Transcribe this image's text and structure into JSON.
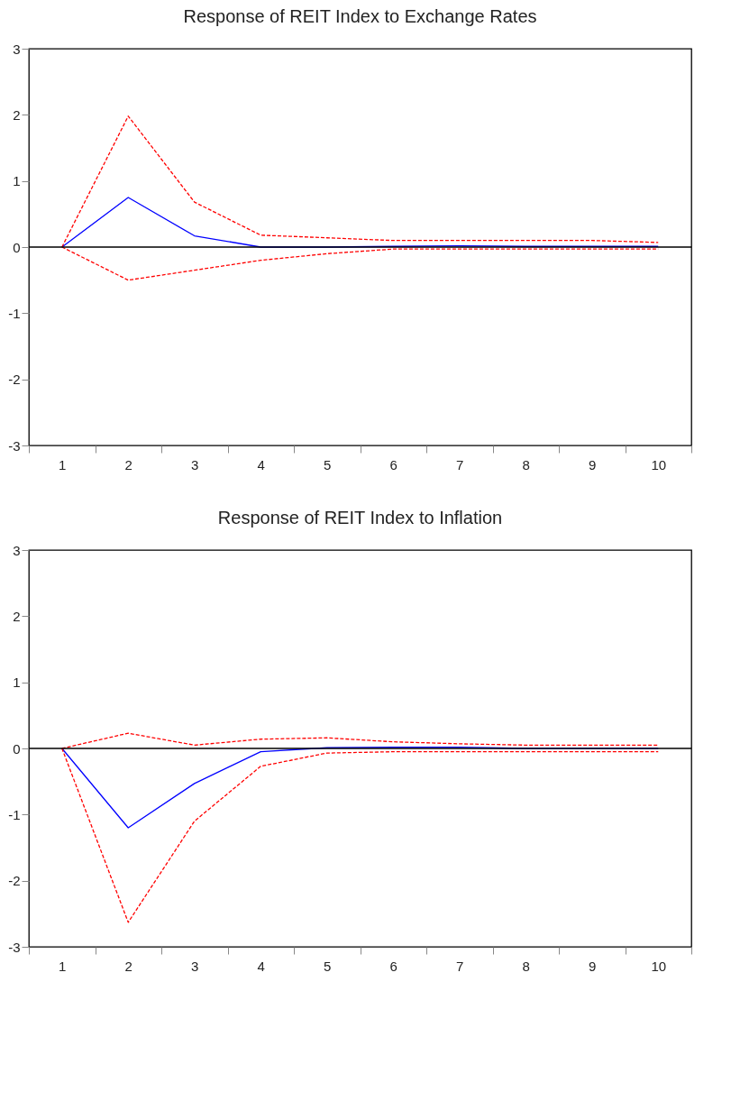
{
  "chart_data": [
    {
      "type": "line",
      "title": "Response of REIT Index to Exchange Rates",
      "categories": [
        "1",
        "2",
        "3",
        "4",
        "5",
        "6",
        "7",
        "8",
        "9",
        "10"
      ],
      "ylim": [
        -3,
        3
      ],
      "yticks": [
        -3,
        -2,
        -1,
        0,
        1,
        2,
        3
      ],
      "grid": false,
      "ref_lines": [
        {
          "axis": "y",
          "value": 0,
          "color": "#000000"
        }
      ],
      "series": [
        {
          "color": "#0000ff",
          "line_style": "solid",
          "values": [
            0,
            0.75,
            0.17,
            0.0,
            0.0,
            0.01,
            0.02,
            0.01,
            0.01,
            0.01
          ]
        },
        {
          "color": "#ff0000",
          "line_style": "dashed",
          "values": [
            0,
            1.98,
            0.68,
            0.18,
            0.14,
            0.1,
            0.1,
            0.1,
            0.1,
            0.07
          ]
        },
        {
          "color": "#ff0000",
          "line_style": "dashed",
          "values": [
            0,
            -0.5,
            -0.35,
            -0.2,
            -0.1,
            -0.03,
            -0.03,
            -0.03,
            -0.03,
            -0.03
          ]
        }
      ]
    },
    {
      "type": "line",
      "title": "Response of REIT Index to Inflation",
      "categories": [
        "1",
        "2",
        "3",
        "4",
        "5",
        "6",
        "7",
        "8",
        "9",
        "10"
      ],
      "ylim": [
        -3,
        3
      ],
      "yticks": [
        -3,
        -2,
        -1,
        0,
        1,
        2,
        3
      ],
      "grid": false,
      "ref_lines": [
        {
          "axis": "y",
          "value": 0,
          "color": "#000000"
        }
      ],
      "series": [
        {
          "color": "#0000ff",
          "line_style": "solid",
          "values": [
            0,
            -1.2,
            -0.53,
            -0.05,
            0.01,
            0.02,
            0.02,
            0.0,
            0.0,
            0.0
          ]
        },
        {
          "color": "#ff0000",
          "line_style": "dashed",
          "values": [
            0,
            0.23,
            0.05,
            0.14,
            0.16,
            0.1,
            0.07,
            0.05,
            0.05,
            0.05
          ]
        },
        {
          "color": "#ff0000",
          "line_style": "dashed",
          "values": [
            0,
            -2.63,
            -1.1,
            -0.27,
            -0.07,
            -0.05,
            -0.05,
            -0.05,
            -0.05,
            -0.05
          ]
        }
      ]
    }
  ]
}
